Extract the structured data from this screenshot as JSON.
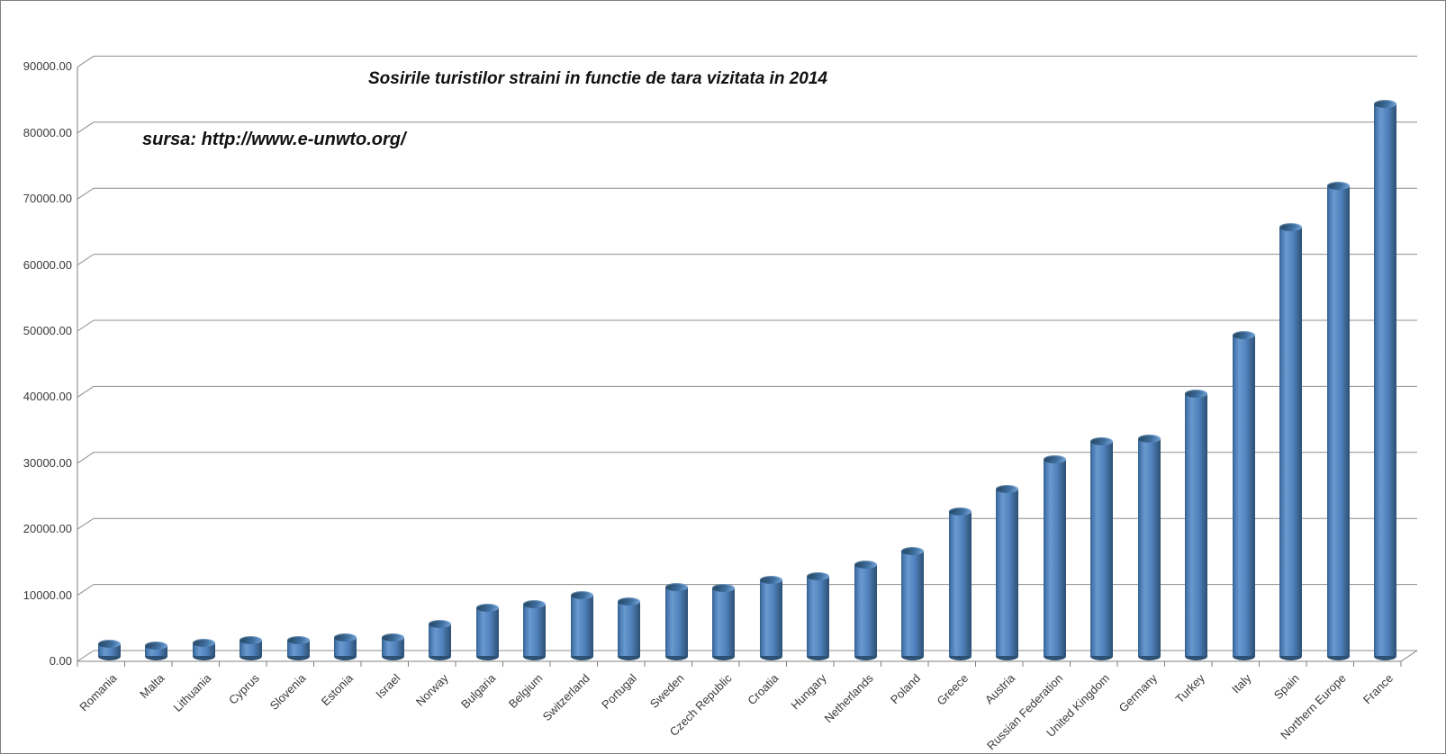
{
  "chart_data": {
    "type": "bar",
    "style": "3d-cylinder",
    "title": "Sosirile turistilor straini in functie de tara vizitata in 2014",
    "source_note": "sursa: http://www.e-unwto.org/",
    "categories": [
      "Romania",
      "Malta",
      "Lithuania",
      "Cyprus",
      "Slovenia",
      "Estonia",
      "Israel",
      "Norway",
      "Bulgaria",
      "Belgium",
      "Switzerland",
      "Portugal",
      "Sweden",
      "Czech Republic",
      "Croatia",
      "Hungary",
      "Netherlands",
      "Poland",
      "Greece",
      "Austria",
      "Russian Federation",
      "United Kingdom",
      "Germany",
      "Turkey",
      "Italy",
      "Spain",
      "Northern Europe",
      "France"
    ],
    "values": [
      1900,
      1700,
      2100,
      2400,
      2400,
      2900,
      2900,
      4900,
      7300,
      7900,
      9200,
      8300,
      10500,
      10400,
      11600,
      12100,
      13900,
      16000,
      22000,
      25300,
      29800,
      32600,
      33000,
      39800,
      48600,
      65000,
      71200,
      83700
    ],
    "xlabel": "",
    "ylabel": "",
    "ylim": [
      0,
      90000
    ],
    "y_tick_step": 10000,
    "y_tick_labels": [
      "0.00",
      "10000.00",
      "20000.00",
      "30000.00",
      "40000.00",
      "50000.00",
      "60000.00",
      "70000.00",
      "80000.00",
      "90000.00"
    ],
    "grid": true,
    "legend": "none",
    "colors": {
      "bar_fill": "#4f81bd",
      "bar_edge_dark": "#2c5173",
      "bar_highlight": "#9cc2e5",
      "gridline": "#8e8e8e",
      "axis_line": "#7f7f7f",
      "tick_text": "#3a3a3a",
      "title_text": "#111111",
      "background": "#ffffff"
    }
  }
}
